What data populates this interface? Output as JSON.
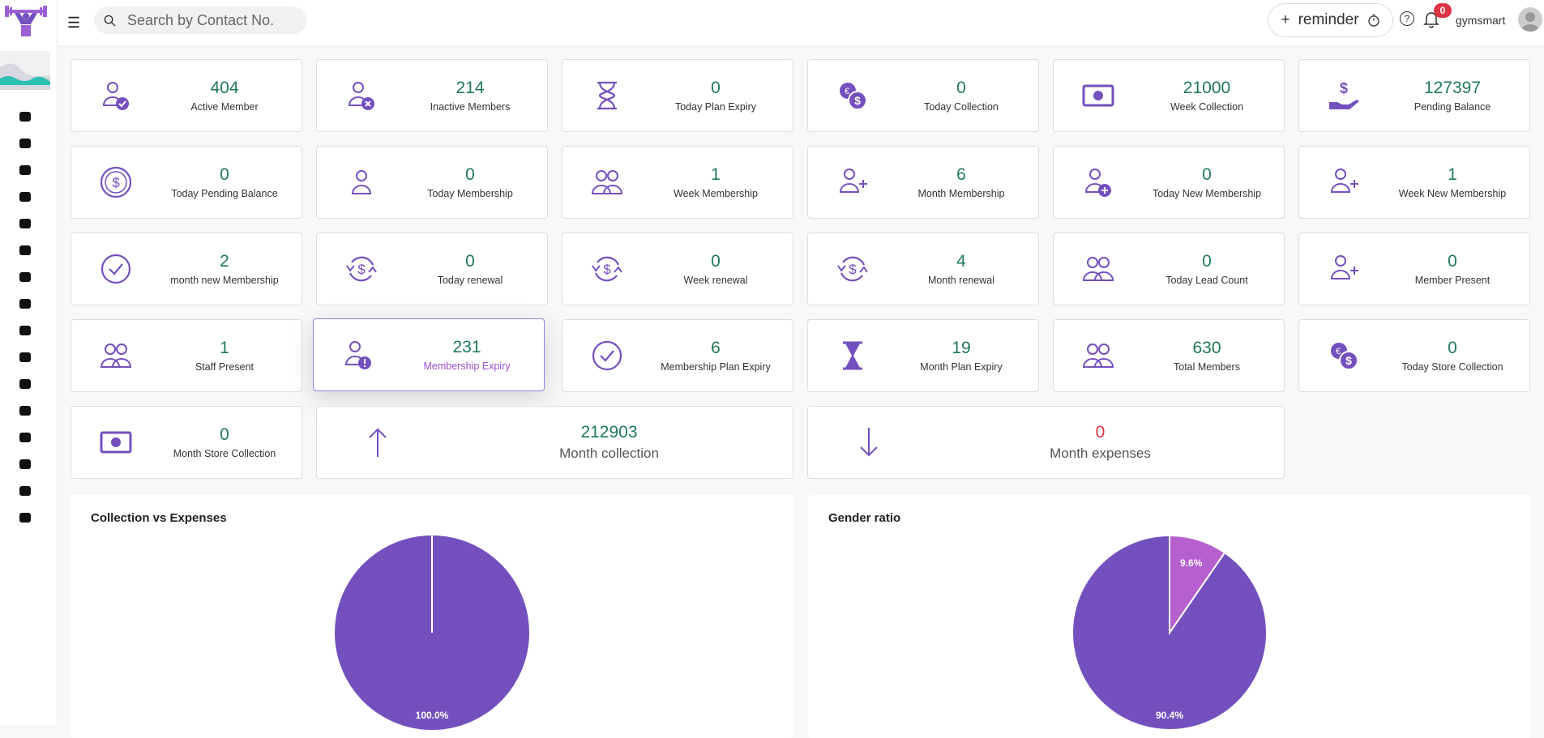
{
  "header": {
    "search_placeholder": "Search by Contact No.",
    "reminder_label": "reminder",
    "notification_count": "0",
    "username": "gymsmart"
  },
  "sidebar": {
    "items": [
      "user-icon",
      "id-card-icon",
      "user-circle-icon",
      "store-icon",
      "gear-icon",
      "bell-icon",
      "alarm-clock-icon",
      "credit-card-icon",
      "archive-icon",
      "clipboard-clock-icon",
      "dumbbell-icon",
      "briefcase-icon",
      "book-icon",
      "filter-icon",
      "id-badge-icon",
      "phone-icon"
    ]
  },
  "colors": {
    "accent": "#7450be",
    "number": "#1f7a55",
    "expense": "#dc3545",
    "pie_primary": "#7450be",
    "pie_secondary": "#b65fcf"
  },
  "cards": [
    {
      "value": "404",
      "label": "Active Member",
      "icon": "user-check-icon"
    },
    {
      "value": "214",
      "label": "Inactive Members",
      "icon": "user-x-icon"
    },
    {
      "value": "0",
      "label": "Today Plan Expiry",
      "icon": "hourglass-icon"
    },
    {
      "value": "0",
      "label": "Today Collection",
      "icon": "coins-icon"
    },
    {
      "value": "21000",
      "label": "Week Collection",
      "icon": "cash-icon"
    },
    {
      "value": "127397",
      "label": "Pending Balance",
      "icon": "hand-dollar-icon"
    },
    {
      "value": "0",
      "label": "Today Pending Balance",
      "icon": "dollar-circle-icon"
    },
    {
      "value": "0",
      "label": "Today Membership",
      "icon": "user-icon"
    },
    {
      "value": "1",
      "label": "Week Membership",
      "icon": "users-icon"
    },
    {
      "value": "6",
      "label": "Month Membership",
      "icon": "user-plus-icon"
    },
    {
      "value": "0",
      "label": "Today New Membership",
      "icon": "user-add-circle-icon"
    },
    {
      "value": "1",
      "label": "Week New Membership",
      "icon": "user-plus-icon"
    },
    {
      "value": "2",
      "label": "month new Membership",
      "icon": "check-circle-icon"
    },
    {
      "value": "0",
      "label": "Today renewal",
      "icon": "dollar-refresh-icon"
    },
    {
      "value": "0",
      "label": "Week renewal",
      "icon": "dollar-refresh-icon"
    },
    {
      "value": "4",
      "label": "Month renewal",
      "icon": "dollar-refresh-icon"
    },
    {
      "value": "0",
      "label": "Today Lead Count",
      "icon": "users-icon"
    },
    {
      "value": "0",
      "label": "Member Present",
      "icon": "user-plus-icon"
    },
    {
      "value": "1",
      "label": "Staff Present",
      "icon": "users-icon"
    },
    {
      "value": "231",
      "label": "Membership Expiry",
      "icon": "user-alert-icon"
    },
    {
      "value": "6",
      "label": "Membership Plan Expiry",
      "icon": "check-circle-icon"
    },
    {
      "value": "19",
      "label": "Month Plan Expiry",
      "icon": "hourglass-filled-icon"
    },
    {
      "value": "630",
      "label": "Total Members",
      "icon": "users-icon"
    },
    {
      "value": "0",
      "label": "Today Store Collection",
      "icon": "coins-icon"
    },
    {
      "value": "0",
      "label": "Month Store Collection",
      "icon": "cash-icon"
    },
    {
      "value": "212903",
      "label": "Month collection",
      "icon": "arrow-up-icon"
    },
    {
      "value": "0",
      "label": "Month expenses",
      "icon": "arrow-down-icon"
    }
  ],
  "chart_data": [
    {
      "type": "pie",
      "title": "Collection vs Expenses",
      "values": [
        212903,
        0
      ],
      "labels_shown": [
        "100.0%"
      ],
      "colors": [
        "#7450be",
        "#b65fcf"
      ]
    },
    {
      "type": "pie",
      "title": "Gender ratio",
      "values": [
        90.4,
        9.6
      ],
      "labels_shown": [
        "90.4%",
        "9.6%"
      ],
      "colors": [
        "#7450be",
        "#b65fcf"
      ]
    }
  ]
}
